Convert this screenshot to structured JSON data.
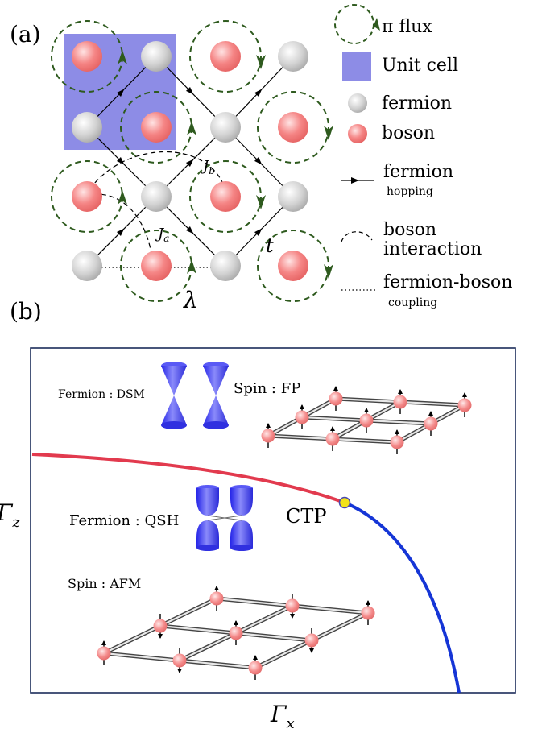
{
  "panel_a": {
    "label": "(a)",
    "legend": {
      "pi_flux": "π flux",
      "unit_cell": "Unit cell",
      "fermion": "fermion",
      "boson": "boson",
      "fermion_hopping_1": "fermion",
      "fermion_hopping_2": "hopping",
      "boson_interaction_1": "boson",
      "boson_interaction_2": "interaction",
      "coupling_1": "fermion-boson",
      "coupling_2": "coupling"
    },
    "symbols": {
      "Jb": "J",
      "Jb_sub": "b",
      "Ja": "J",
      "Ja_sub": "a",
      "t": "t",
      "lambda": "λ"
    }
  },
  "panel_b": {
    "label": "(b)",
    "y_axis": "Γ",
    "y_axis_sub": "z",
    "x_axis": "Γ",
    "x_axis_sub": "x",
    "critical_point": "CTP",
    "top_fermion": "Fermion : DSM",
    "top_spin": "Spin : FP",
    "bottom_fermion": "Fermion : QSH",
    "bottom_spin": "Spin : AFM"
  },
  "colors": {
    "unit_cell": "#8d8ce6",
    "boson": "#f27a7a",
    "fermion": "#c9c9c9",
    "flux": "#2e5a1e",
    "red_line": "#e23a4e",
    "blue_line": "#1535d6",
    "ctp_fill": "#f2e21a",
    "cone": "#3a3af0"
  }
}
